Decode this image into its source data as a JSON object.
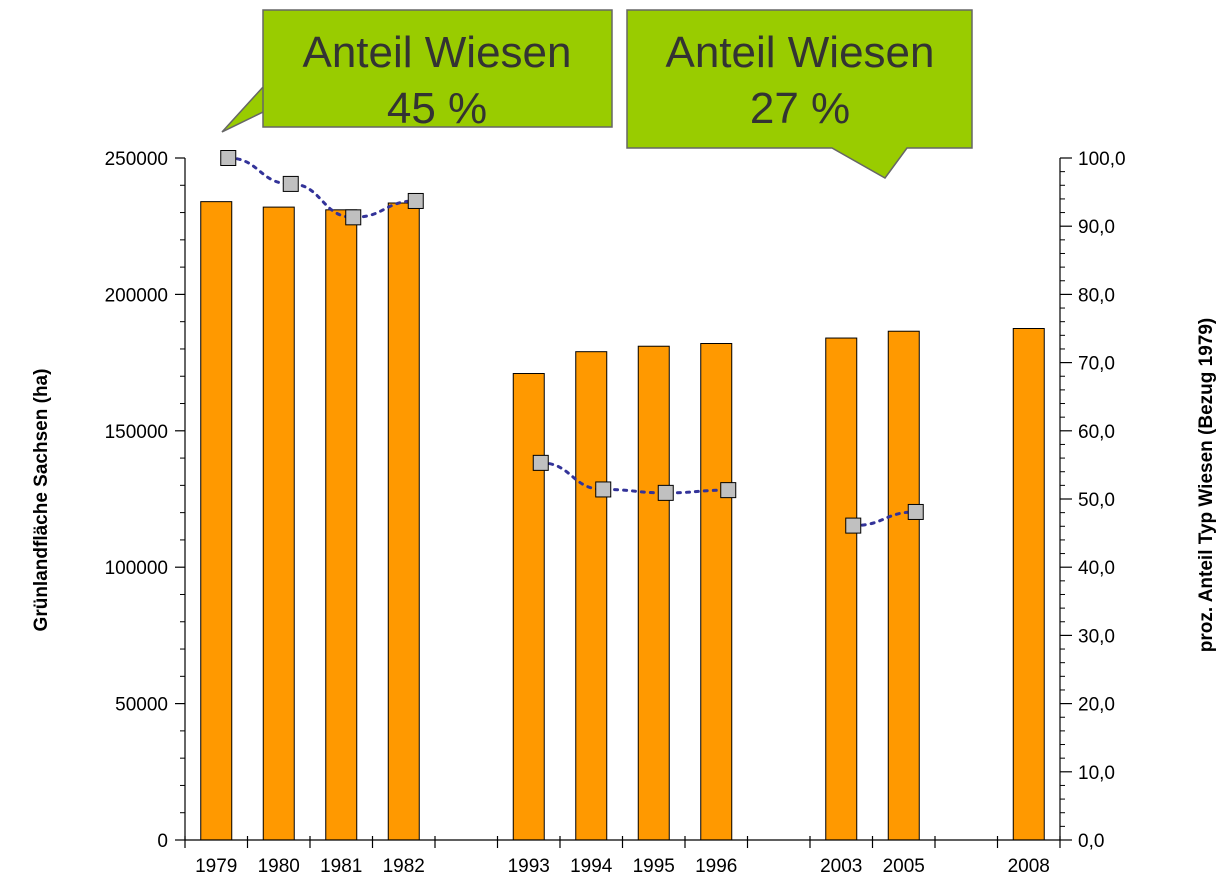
{
  "chart_data": {
    "type": "bar",
    "categories": [
      "1979",
      "1980",
      "1981",
      "1982",
      "",
      "1993",
      "1994",
      "1995",
      "1996",
      "",
      "2003",
      "2005",
      "",
      "2008"
    ],
    "series": [
      {
        "axis": "left",
        "type": "bar",
        "values": [
          234000,
          232000,
          231000,
          233500,
          null,
          171000,
          179000,
          181000,
          182000,
          null,
          184000,
          186500,
          null,
          187500
        ]
      },
      {
        "axis": "right",
        "type": "line",
        "style": "dotted",
        "values": [
          100.0,
          96.2,
          91.3,
          93.7,
          null,
          55.3,
          51.4,
          50.9,
          51.3,
          null,
          46.1,
          48.1,
          null,
          null
        ]
      }
    ],
    "ylabel": "Grünlandfläche Sachsen (ha)",
    "y2label": "proz. Anteil Typ Wiesen (Bezug 1979)",
    "ylim": [
      0,
      250000
    ],
    "y2lim": [
      0,
      100
    ],
    "yticks": [
      "0",
      "50000",
      "100000",
      "150000",
      "200000",
      "250000"
    ],
    "y2ticks": [
      "0,0",
      "10,0",
      "20,0",
      "30,0",
      "40,0",
      "50,0",
      "60,0",
      "70,0",
      "80,0",
      "90,0",
      "100,0"
    ],
    "grid": false,
    "callouts": [
      {
        "line1": "Anteil Wiesen",
        "line2": "45 %",
        "points_to": "1979"
      },
      {
        "line1": "Anteil Wiesen",
        "line2": "27 %",
        "points_to": "2005"
      }
    ]
  },
  "colors": {
    "bar_fill": "#FF9900",
    "bar_stroke": "#000000",
    "line": "#333399",
    "marker_fill": "#C0C0C0",
    "callout_fill": "#99CC00",
    "callout_stroke": "#666666"
  }
}
